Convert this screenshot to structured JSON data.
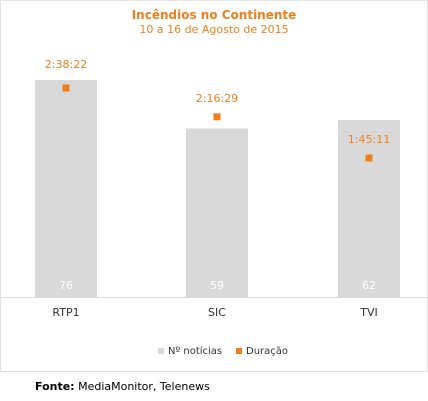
{
  "chart_data": {
    "type": "bar",
    "title": "Incêndios no Continente",
    "subtitle": "10 a 16 de Agosto de 2015",
    "categories": [
      "RTP1",
      "SIC",
      "TVI"
    ],
    "series": [
      {
        "name": "Nº notícias",
        "values": [
          76,
          59,
          62
        ],
        "color": "#d9d9d9",
        "value_label_color": "#ffffff"
      },
      {
        "name": "Duração",
        "values": [
          "2:38:22",
          "2:16:29",
          "1:45:11"
        ],
        "seconds": [
          9502,
          8189,
          6311
        ],
        "color": "#f07f1b"
      }
    ],
    "legend_position": "bottom",
    "grid": false
  },
  "source": {
    "label": "Fonte:",
    "text": "MediaMonitor, Telenews"
  }
}
